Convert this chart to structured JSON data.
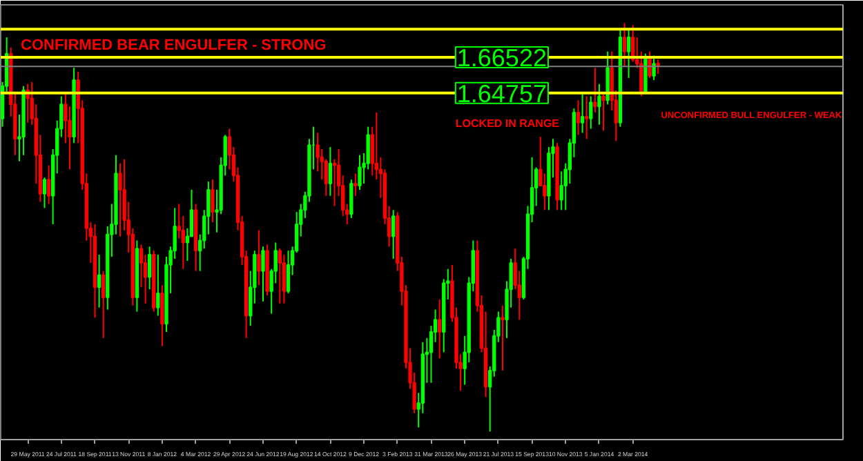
{
  "chart_data": {
    "type": "candlestick",
    "colors": [
      "#00ff00",
      "#00ff00",
      "#ff0000",
      "#ff0000",
      "#00ff00",
      "#00ff00",
      "#ff0000",
      "#ff0000",
      "#ff0000",
      "#ff0000",
      "#00ff00",
      "#ff0000",
      "#00ff00",
      "#00ff00",
      "#00ff00",
      "#ff0000",
      "#ff0000",
      "#00ff00",
      "#ff0000",
      "#ff0000",
      "#ff0000",
      "#ff0000",
      "#ff0000",
      "#00ff00",
      "#ff0000",
      "#00ff00",
      "#00ff00",
      "#00ff00",
      "#ff0000",
      "#ff0000",
      "#ff0000",
      "#ff0000",
      "#00ff00",
      "#ff0000",
      "#ff0000",
      "#00ff00",
      "#ff0000",
      "#00ff00",
      "#ff0000",
      "#00ff00",
      "#00ff00",
      "#00ff00",
      "#ff0000",
      "#ff0000",
      "#00ff00",
      "#00ff00",
      "#ff0000",
      "#00ff00",
      "#00ff00",
      "#00ff00",
      "#ff0000",
      "#00ff00",
      "#00ff00",
      "#00ff00",
      "#ff0000",
      "#ff0000",
      "#ff0000",
      "#ff0000",
      "#ff0000",
      "#00ff00",
      "#00ff00",
      "#ff0000",
      "#00ff00",
      "#ff0000",
      "#00ff00",
      "#00ff00",
      "#ff0000",
      "#ff0000",
      "#00ff00",
      "#00ff00",
      "#00ff00",
      "#00ff00",
      "#00ff00",
      "#00ff00",
      "#00ff00",
      "#ff0000",
      "#ff0000",
      "#ff0000",
      "#00ff00",
      "#ff0000",
      "#ff0000",
      "#ff0000",
      "#ff0000",
      "#00ff00",
      "#ff0000",
      "#00ff00",
      "#00ff00",
      "#00ff00",
      "#ff0000",
      "#ff0000",
      "#ff0000",
      "#ff0000",
      "#ff0000",
      "#00ff00",
      "#ff0000",
      "#ff0000",
      "#ff0000",
      "#ff0000",
      "#ff0000",
      "#00ff00",
      "#00ff00",
      "#00ff00",
      "#00ff00",
      "#00ff00",
      "#ff0000",
      "#00ff00",
      "#00ff00",
      "#ff0000",
      "#ff0000",
      "#ff0000",
      "#00ff00",
      "#00ff00",
      "#00ff00",
      "#ff0000",
      "#ff0000",
      "#ff0000",
      "#00ff00",
      "#00ff00",
      "#00ff00",
      "#ff0000",
      "#00ff00",
      "#00ff00",
      "#ff0000",
      "#ff0000",
      "#00ff00",
      "#00ff00",
      "#00ff00",
      "#00ff00",
      "#ff0000",
      "#ff0000",
      "#00ff00",
      "#00ff00",
      "#ff0000",
      "#00ff00",
      "#00ff00",
      "#00ff00",
      "#00ff00",
      "#ff0000",
      "#00ff00",
      "#ff0000",
      "#00ff00",
      "#ff0000",
      "#00ff00",
      "#ff0000",
      "#00ff00",
      "#ff0000",
      "#ff0000",
      "#00ff00",
      "#ff0000",
      "#00ff00",
      "#ff0000",
      "#ff0000",
      "#ff0000",
      "#00ff00",
      "#ff0000",
      "#00ff00",
      "#ff0000"
    ],
    "x": [
      "2011-04-17",
      "2011-04-24",
      "2011-05-01",
      "2011-05-08",
      "2011-05-15",
      "2011-05-22",
      "2011-05-29",
      "2011-06-05",
      "2011-06-12",
      "2011-06-19",
      "2011-06-26",
      "2011-07-03",
      "2011-07-10",
      "2011-07-17",
      "2011-07-24",
      "2011-07-31",
      "2011-08-07",
      "2011-08-14",
      "2011-08-21",
      "2011-08-28",
      "2011-09-04",
      "2011-09-11",
      "2011-09-18",
      "2011-09-25",
      "2011-10-02",
      "2011-10-09",
      "2011-10-16",
      "2011-10-23",
      "2011-10-30",
      "2011-11-06",
      "2011-11-13",
      "2011-11-20",
      "2011-11-27",
      "2011-12-04",
      "2011-12-11",
      "2011-12-18",
      "2011-12-25",
      "2012-01-01",
      "2012-01-08",
      "2012-01-15",
      "2012-01-22",
      "2012-01-29",
      "2012-02-05",
      "2012-02-12",
      "2012-02-19",
      "2012-02-26",
      "2012-03-04",
      "2012-03-11",
      "2012-03-18",
      "2012-03-25",
      "2012-04-01",
      "2012-04-08",
      "2012-04-15",
      "2012-04-22",
      "2012-04-29",
      "2012-05-06",
      "2012-05-13",
      "2012-05-20",
      "2012-05-27",
      "2012-06-03",
      "2012-06-10",
      "2012-06-17",
      "2012-06-24",
      "2012-07-01",
      "2012-07-08",
      "2012-07-15",
      "2012-07-22",
      "2012-07-29",
      "2012-08-05",
      "2012-08-12",
      "2012-08-19",
      "2012-08-26",
      "2012-09-02",
      "2012-09-09",
      "2012-09-16",
      "2012-09-23",
      "2012-09-30",
      "2012-10-07",
      "2012-10-14",
      "2012-10-21",
      "2012-10-28",
      "2012-11-04",
      "2012-11-11",
      "2012-11-18",
      "2012-11-25",
      "2012-12-02",
      "2012-12-09",
      "2012-12-16",
      "2012-12-23",
      "2012-12-30",
      "2013-01-06",
      "2013-01-13",
      "2013-01-20",
      "2013-01-27",
      "2013-02-03",
      "2013-02-10",
      "2013-02-17",
      "2013-02-24",
      "2013-03-03",
      "2013-03-10",
      "2013-03-17",
      "2013-03-24",
      "2013-03-31",
      "2013-04-07",
      "2013-04-14",
      "2013-04-21",
      "2013-04-28",
      "2013-05-05",
      "2013-05-12",
      "2013-05-19",
      "2013-05-26",
      "2013-06-02",
      "2013-06-09",
      "2013-06-16",
      "2013-06-23",
      "2013-06-30",
      "2013-07-07",
      "2013-07-14",
      "2013-07-21",
      "2013-07-28",
      "2013-08-04",
      "2013-08-11",
      "2013-08-18",
      "2013-08-25",
      "2013-09-01",
      "2013-09-08",
      "2013-09-15",
      "2013-09-22",
      "2013-09-29",
      "2013-10-06",
      "2013-10-13",
      "2013-10-20",
      "2013-10-27",
      "2013-11-03",
      "2013-11-10",
      "2013-11-17",
      "2013-11-24",
      "2013-12-01",
      "2013-12-08",
      "2013-12-15",
      "2013-12-22",
      "2013-12-29",
      "2014-01-05",
      "2014-01-12",
      "2014-01-19",
      "2014-01-26",
      "2014-02-02",
      "2014-02-09",
      "2014-02-16",
      "2014-02-23",
      "2014-03-02",
      "2014-03-09",
      "2014-03-16",
      "2014-03-23",
      "2014-03-30",
      "2014-04-06",
      "2014-04-13"
    ],
    "ohlc": [
      [
        1.635,
        1.653,
        1.631,
        1.651
      ],
      [
        1.651,
        1.675,
        1.648,
        1.667
      ],
      [
        1.667,
        1.67,
        1.636,
        1.642
      ],
      [
        1.642,
        1.648,
        1.617,
        1.625
      ],
      [
        1.625,
        1.637,
        1.614,
        1.626
      ],
      [
        1.626,
        1.651,
        1.617,
        1.649
      ],
      [
        1.649,
        1.652,
        1.633,
        1.645
      ],
      [
        1.645,
        1.653,
        1.632,
        1.635
      ],
      [
        1.635,
        1.642,
        1.603,
        1.617
      ],
      [
        1.617,
        1.627,
        1.594,
        1.598
      ],
      [
        1.598,
        1.606,
        1.591,
        1.605
      ],
      [
        1.605,
        1.612,
        1.593,
        1.597
      ],
      [
        1.597,
        1.62,
        1.583,
        1.617
      ],
      [
        1.617,
        1.634,
        1.608,
        1.63
      ],
      [
        1.63,
        1.646,
        1.626,
        1.642
      ],
      [
        1.642,
        1.648,
        1.623,
        1.634
      ],
      [
        1.634,
        1.641,
        1.61,
        1.626
      ],
      [
        1.626,
        1.66,
        1.623,
        1.654
      ],
      [
        1.654,
        1.658,
        1.623,
        1.64
      ],
      [
        1.64,
        1.644,
        1.6,
        1.603
      ],
      [
        1.603,
        1.608,
        1.575,
        1.581
      ],
      [
        1.581,
        1.584,
        1.564,
        1.577
      ],
      [
        1.577,
        1.583,
        1.537,
        1.552
      ],
      [
        1.552,
        1.568,
        1.542,
        1.558
      ],
      [
        1.558,
        1.56,
        1.527,
        1.547
      ],
      [
        1.547,
        1.582,
        1.541,
        1.578
      ],
      [
        1.578,
        1.593,
        1.567,
        1.583
      ],
      [
        1.583,
        1.617,
        1.578,
        1.608
      ],
      [
        1.608,
        1.613,
        1.577,
        1.6
      ],
      [
        1.6,
        1.615,
        1.58,
        1.585
      ],
      [
        1.585,
        1.594,
        1.569,
        1.578
      ],
      [
        1.578,
        1.581,
        1.543,
        1.547
      ],
      [
        1.547,
        1.575,
        1.54,
        1.571
      ],
      [
        1.571,
        1.573,
        1.552,
        1.564
      ],
      [
        1.564,
        1.568,
        1.544,
        1.557
      ],
      [
        1.557,
        1.572,
        1.551,
        1.568
      ],
      [
        1.568,
        1.57,
        1.54,
        1.542
      ],
      [
        1.542,
        1.568,
        1.538,
        1.549
      ],
      [
        1.549,
        1.553,
        1.523,
        1.534
      ],
      [
        1.534,
        1.567,
        1.53,
        1.563
      ],
      [
        1.563,
        1.572,
        1.549,
        1.57
      ],
      [
        1.57,
        1.591,
        1.566,
        1.582
      ],
      [
        1.582,
        1.593,
        1.576,
        1.58
      ],
      [
        1.58,
        1.587,
        1.561,
        1.574
      ],
      [
        1.574,
        1.581,
        1.565,
        1.577
      ],
      [
        1.577,
        1.6,
        1.577,
        1.59
      ],
      [
        1.59,
        1.593,
        1.56,
        1.57
      ],
      [
        1.57,
        1.578,
        1.56,
        1.575
      ],
      [
        1.575,
        1.59,
        1.571,
        1.587
      ],
      [
        1.587,
        1.604,
        1.578,
        1.6
      ],
      [
        1.6,
        1.605,
        1.584,
        1.589
      ],
      [
        1.589,
        1.6,
        1.579,
        1.59
      ],
      [
        1.59,
        1.616,
        1.588,
        1.612
      ],
      [
        1.612,
        1.627,
        1.607,
        1.626
      ],
      [
        1.626,
        1.63,
        1.61,
        1.617
      ],
      [
        1.617,
        1.621,
        1.604,
        1.607
      ],
      [
        1.607,
        1.611,
        1.58,
        1.584
      ],
      [
        1.584,
        1.587,
        1.563,
        1.567
      ],
      [
        1.567,
        1.57,
        1.527,
        1.538
      ],
      [
        1.538,
        1.56,
        1.533,
        1.552
      ],
      [
        1.552,
        1.57,
        1.544,
        1.568
      ],
      [
        1.568,
        1.58,
        1.553,
        1.56
      ],
      [
        1.56,
        1.572,
        1.545,
        1.57
      ],
      [
        1.57,
        1.573,
        1.548,
        1.55
      ],
      [
        1.55,
        1.561,
        1.539,
        1.56
      ],
      [
        1.56,
        1.574,
        1.554,
        1.57
      ],
      [
        1.57,
        1.571,
        1.544,
        1.564
      ],
      [
        1.564,
        1.568,
        1.544,
        1.55
      ],
      [
        1.55,
        1.57,
        1.549,
        1.563
      ],
      [
        1.563,
        1.572,
        1.558,
        1.57
      ],
      [
        1.57,
        1.589,
        1.569,
        1.583
      ],
      [
        1.583,
        1.593,
        1.577,
        1.59
      ],
      [
        1.59,
        1.599,
        1.586,
        1.597
      ],
      [
        1.597,
        1.625,
        1.594,
        1.622
      ],
      [
        1.622,
        1.631,
        1.61,
        1.622
      ],
      [
        1.622,
        1.628,
        1.609,
        1.616
      ],
      [
        1.616,
        1.62,
        1.605,
        1.614
      ],
      [
        1.614,
        1.615,
        1.597,
        1.603
      ],
      [
        1.603,
        1.621,
        1.597,
        1.613
      ],
      [
        1.613,
        1.615,
        1.592,
        1.612
      ],
      [
        1.612,
        1.62,
        1.597,
        1.602
      ],
      [
        1.602,
        1.607,
        1.587,
        1.59
      ],
      [
        1.59,
        1.593,
        1.583,
        1.588
      ],
      [
        1.588,
        1.605,
        1.586,
        1.603
      ],
      [
        1.603,
        1.608,
        1.597,
        1.602
      ],
      [
        1.602,
        1.617,
        1.6,
        1.611
      ],
      [
        1.611,
        1.618,
        1.603,
        1.613
      ],
      [
        1.613,
        1.631,
        1.61,
        1.627
      ],
      [
        1.627,
        1.631,
        1.607,
        1.613
      ],
      [
        1.613,
        1.638,
        1.605,
        1.61
      ],
      [
        1.61,
        1.616,
        1.596,
        1.608
      ],
      [
        1.608,
        1.61,
        1.583,
        1.586
      ],
      [
        1.586,
        1.592,
        1.572,
        1.577
      ],
      [
        1.577,
        1.59,
        1.566,
        1.587
      ],
      [
        1.587,
        1.589,
        1.56,
        1.564
      ],
      [
        1.564,
        1.567,
        1.543,
        1.55
      ],
      [
        1.55,
        1.553,
        1.512,
        1.515
      ],
      [
        1.515,
        1.522,
        1.502,
        1.505
      ],
      [
        1.505,
        1.51,
        1.49,
        1.492
      ],
      [
        1.492,
        1.5,
        1.483,
        1.495
      ],
      [
        1.495,
        1.525,
        1.49,
        1.519
      ],
      [
        1.519,
        1.527,
        1.505,
        1.52
      ],
      [
        1.52,
        1.533,
        1.505,
        1.53
      ],
      [
        1.53,
        1.541,
        1.525,
        1.536
      ],
      [
        1.536,
        1.546,
        1.517,
        1.53
      ],
      [
        1.53,
        1.556,
        1.52,
        1.554
      ],
      [
        1.554,
        1.561,
        1.546,
        1.555
      ],
      [
        1.555,
        1.563,
        1.535,
        1.537
      ],
      [
        1.537,
        1.542,
        1.512,
        1.515
      ],
      [
        1.515,
        1.519,
        1.501,
        1.512
      ],
      [
        1.512,
        1.528,
        1.504,
        1.52
      ],
      [
        1.52,
        1.557,
        1.515,
        1.554
      ],
      [
        1.554,
        1.575,
        1.55,
        1.57
      ],
      [
        1.57,
        1.575,
        1.54,
        1.543
      ],
      [
        1.543,
        1.548,
        1.52,
        1.522
      ],
      [
        1.522,
        1.54,
        1.498,
        1.503
      ],
      [
        1.503,
        1.513,
        1.481,
        1.511
      ],
      [
        1.511,
        1.531,
        1.508,
        1.528
      ],
      [
        1.528,
        1.54,
        1.525,
        1.537
      ],
      [
        1.537,
        1.543,
        1.511,
        1.536
      ],
      [
        1.536,
        1.555,
        1.527,
        1.551
      ],
      [
        1.551,
        1.566,
        1.542,
        1.564
      ],
      [
        1.564,
        1.571,
        1.551,
        1.553
      ],
      [
        1.553,
        1.56,
        1.536,
        1.547
      ],
      [
        1.547,
        1.567,
        1.546,
        1.566
      ],
      [
        1.566,
        1.592,
        1.561,
        1.588
      ],
      [
        1.588,
        1.616,
        1.584,
        1.601
      ],
      [
        1.601,
        1.611,
        1.592,
        1.61
      ],
      [
        1.61,
        1.626,
        1.602,
        1.602
      ],
      [
        1.602,
        1.608,
        1.59,
        1.597
      ],
      [
        1.597,
        1.621,
        1.59,
        1.618
      ],
      [
        1.618,
        1.625,
        1.606,
        1.621
      ],
      [
        1.621,
        1.623,
        1.59,
        1.595
      ],
      [
        1.595,
        1.609,
        1.59,
        1.602
      ],
      [
        1.602,
        1.613,
        1.59,
        1.61
      ],
      [
        1.61,
        1.625,
        1.603,
        1.623
      ],
      [
        1.623,
        1.64,
        1.616,
        1.638
      ],
      [
        1.638,
        1.644,
        1.627,
        1.633
      ],
      [
        1.633,
        1.648,
        1.628,
        1.636
      ],
      [
        1.636,
        1.646,
        1.625,
        1.635
      ],
      [
        1.635,
        1.646,
        1.63,
        1.643
      ],
      [
        1.643,
        1.66,
        1.638,
        1.641
      ],
      [
        1.641,
        1.652,
        1.632,
        1.646
      ],
      [
        1.646,
        1.647,
        1.629,
        1.644
      ],
      [
        1.644,
        1.668,
        1.642,
        1.66
      ],
      [
        1.66,
        1.668,
        1.639,
        1.644
      ],
      [
        1.644,
        1.649,
        1.624,
        1.633
      ],
      [
        1.633,
        1.679,
        1.631,
        1.675
      ],
      [
        1.675,
        1.682,
        1.661,
        1.668
      ],
      [
        1.668,
        1.679,
        1.655,
        1.675
      ],
      [
        1.675,
        1.681,
        1.663,
        1.664
      ],
      [
        1.664,
        1.675,
        1.66,
        1.662
      ],
      [
        1.662,
        1.668,
        1.646,
        1.648
      ],
      [
        1.648,
        1.667,
        1.647,
        1.665
      ],
      [
        1.665,
        1.668,
        1.655,
        1.656
      ],
      [
        1.656,
        1.666,
        1.654,
        1.662
      ],
      [
        1.662,
        1.664,
        1.657,
        1.661
      ]
    ],
    "xlim": [
      "2011-04-14",
      "2015-02-15"
    ],
    "xticks": [
      {
        "value": "2011-05-29",
        "label": "29 May 2011"
      },
      {
        "value": "2011-07-24",
        "label": "24 Jul 2011"
      },
      {
        "value": "2011-09-18",
        "label": "18 Sep 2011"
      },
      {
        "value": "2011-11-13",
        "label": "13 Nov 2011"
      },
      {
        "value": "2012-01-08",
        "label": "8 Jan 2012"
      },
      {
        "value": "2012-03-04",
        "label": "4 Mar 2012"
      },
      {
        "value": "2012-04-29",
        "label": "29 Apr 2012"
      },
      {
        "value": "2012-06-24",
        "label": "24 Jun 2012"
      },
      {
        "value": "2012-08-19",
        "label": "19 Aug 2012"
      },
      {
        "value": "2012-10-14",
        "label": "14 Oct 2012"
      },
      {
        "value": "2012-12-09",
        "label": "9 Dec 2012"
      },
      {
        "value": "2013-02-03",
        "label": "3 Feb 2013"
      },
      {
        "value": "2013-03-31",
        "label": "31 Mar 2013"
      },
      {
        "value": "2013-05-26",
        "label": "26 May 2013"
      },
      {
        "value": "2013-07-21",
        "label": "21 Jul 2013"
      },
      {
        "value": "2013-09-15",
        "label": "15 Sep 2013"
      },
      {
        "value": "2013-11-10",
        "label": "10 Nov 2013"
      },
      {
        "value": "2014-01-05",
        "label": "5 Jan 2014"
      },
      {
        "value": "2014-03-02",
        "label": "2 Mar 2014"
      }
    ],
    "ylim": [
      1.477,
      1.691
    ],
    "tick_labels": "x",
    "ref_lines": [
      {
        "axis": "y",
        "value": 1.679,
        "label": null,
        "color": "#ffff00"
      },
      {
        "axis": "y",
        "value": 1.66522,
        "label": "1.66522",
        "color": "#ffff00"
      },
      {
        "axis": "y",
        "value": 1.6607,
        "label": null,
        "color": "#808080"
      },
      {
        "axis": "y",
        "value": 1.64757,
        "label": "1.64757",
        "color": "#ffff00"
      }
    ],
    "annotations": [
      {
        "text": "CONFIRMED BEAR ENGULFER - STRONG",
        "x": "2011-04-24",
        "y": 1.675
      },
      "LOCKED IN RANGE",
      "UNCONFIRMED BULL ENGULFER - WEAK"
    ]
  }
}
